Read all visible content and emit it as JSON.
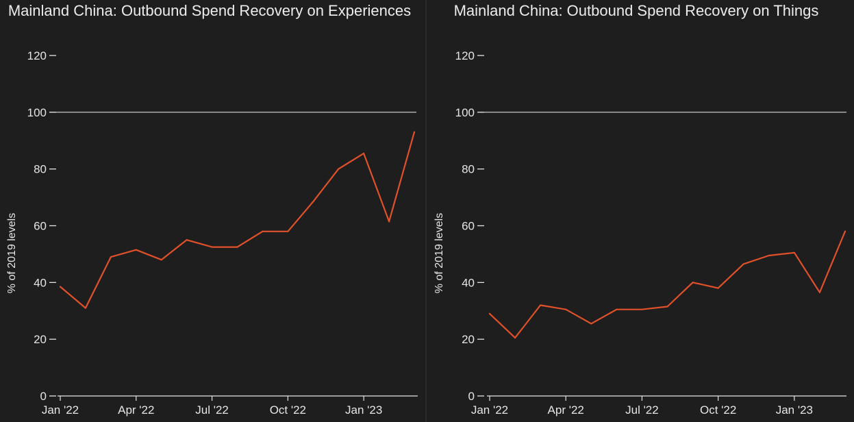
{
  "chart_data": [
    {
      "type": "line",
      "title": "Mainland China: Outbound Spend Recovery on Experiences",
      "ylabel": "% of 2019 levels",
      "xlabel": "",
      "ylim": [
        0,
        120
      ],
      "yticks": [
        0,
        20,
        40,
        60,
        80,
        100,
        120
      ],
      "reference_line": 100,
      "grid": false,
      "x": [
        "Jan '22",
        "Feb '22",
        "Mar '22",
        "Apr '22",
        "May '22",
        "Jun '22",
        "Jul '22",
        "Aug '22",
        "Sep '22",
        "Oct '22",
        "Nov '22",
        "Dec '22",
        "Jan '23",
        "Feb '23",
        "Mar '23"
      ],
      "xtick_labels": [
        "Jan '22",
        "Apr '22",
        "Jul '22",
        "Oct '22",
        "Jan '23"
      ],
      "xtick_indices": [
        0,
        3,
        6,
        9,
        12
      ],
      "series": [
        {
          "values": [
            38.5,
            31,
            49,
            51.5,
            48,
            55,
            52.5,
            52.5,
            58,
            58,
            68.5,
            80,
            85.5,
            61.5,
            93
          ],
          "color": "#e0512a"
        }
      ]
    },
    {
      "type": "line",
      "title": "Mainland China: Outbound Spend Recovery on Things",
      "ylabel": "% of 2019 levels",
      "xlabel": "",
      "ylim": [
        0,
        120
      ],
      "yticks": [
        0,
        20,
        40,
        60,
        80,
        100,
        120
      ],
      "reference_line": 100,
      "grid": false,
      "x": [
        "Jan '22",
        "Feb '22",
        "Mar '22",
        "Apr '22",
        "May '22",
        "Jun '22",
        "Jul '22",
        "Aug '22",
        "Sep '22",
        "Oct '22",
        "Nov '22",
        "Dec '22",
        "Jan '23",
        "Feb '23",
        "Mar '23"
      ],
      "xtick_labels": [
        "Jan '22",
        "Apr '22",
        "Jul '22",
        "Oct '22",
        "Jan '23"
      ],
      "xtick_indices": [
        0,
        3,
        6,
        9,
        12
      ],
      "series": [
        {
          "values": [
            29,
            20.5,
            32,
            30.5,
            25.5,
            30.5,
            30.5,
            31.5,
            40,
            38,
            46.5,
            49.5,
            50.5,
            36.5,
            58
          ],
          "color": "#e0512a"
        }
      ]
    }
  ],
  "colors": {
    "background": "#1f1e1f",
    "text": "#e6e6e6",
    "line": "#e0512a",
    "reference": "#dedede"
  }
}
